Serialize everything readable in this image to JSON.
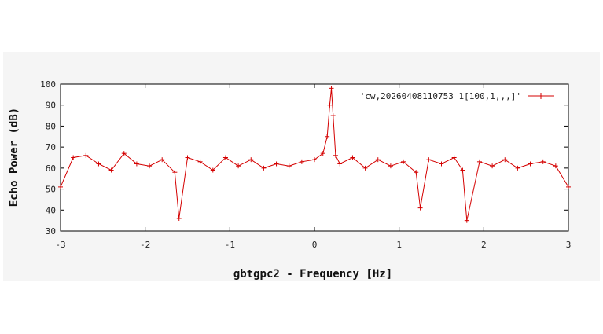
{
  "chart_data": {
    "type": "line",
    "title": "",
    "xlabel": "gbtgpc2 - Frequency [Hz]",
    "ylabel": "Echo Power (dB)",
    "xlim": [
      -3,
      3
    ],
    "ylim": [
      30,
      100
    ],
    "x_ticks": [
      -3,
      -2,
      -1,
      0,
      1,
      2,
      3
    ],
    "y_ticks": [
      30,
      40,
      50,
      60,
      70,
      80,
      90,
      100
    ],
    "grid": false,
    "legend_position": "top-right",
    "color": "#d40000",
    "marker": "plus",
    "series": [
      {
        "name": "'cw,20260408110753_1[100,1,,,]'",
        "x": [
          -3.0,
          -2.85,
          -2.7,
          -2.55,
          -2.4,
          -2.25,
          -2.1,
          -1.95,
          -1.8,
          -1.65,
          -1.6,
          -1.5,
          -1.35,
          -1.2,
          -1.05,
          -0.9,
          -0.75,
          -0.6,
          -0.45,
          -0.3,
          -0.15,
          0.0,
          0.1,
          0.15,
          0.18,
          0.2,
          0.22,
          0.25,
          0.3,
          0.45,
          0.6,
          0.75,
          0.9,
          1.05,
          1.2,
          1.25,
          1.35,
          1.5,
          1.65,
          1.75,
          1.8,
          1.95,
          2.1,
          2.25,
          2.4,
          2.55,
          2.7,
          2.85,
          3.0
        ],
        "values": [
          51,
          65,
          66,
          62,
          59,
          67,
          62,
          61,
          64,
          58,
          36,
          65,
          63,
          59,
          65,
          61,
          64,
          60,
          62,
          61,
          63,
          64,
          67,
          75,
          90,
          98,
          85,
          66,
          62,
          65,
          60,
          64,
          61,
          63,
          58,
          41,
          64,
          62,
          65,
          59,
          35,
          63,
          61,
          64,
          60,
          62,
          63,
          61,
          51
        ]
      }
    ]
  }
}
